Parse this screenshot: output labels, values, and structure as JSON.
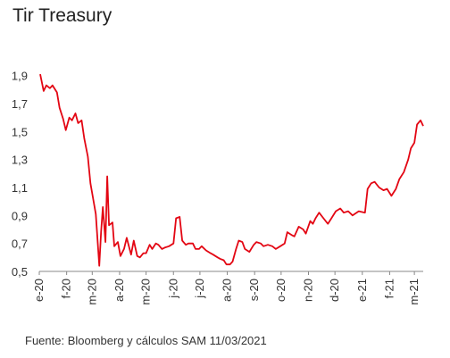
{
  "chart_data": {
    "type": "line",
    "title": "Tir Treasury",
    "xlabel": "",
    "ylabel": "",
    "ylim": [
      0.5,
      2.0
    ],
    "yticks": [
      0.5,
      0.7,
      0.9,
      1.1,
      1.3,
      1.5,
      1.7,
      1.9
    ],
    "ytick_labels": [
      "0,5",
      "0,7",
      "0,9",
      "1,1",
      "1,3",
      "1,5",
      "1,7",
      "1,9"
    ],
    "xticks": [
      {
        "label": "e-20",
        "x": "2020-01-01"
      },
      {
        "label": "f-20",
        "x": "2020-02-01"
      },
      {
        "label": "m-20",
        "x": "2020-03-01"
      },
      {
        "label": "a-20",
        "x": "2020-04-01"
      },
      {
        "label": "m-20",
        "x": "2020-05-01"
      },
      {
        "label": "j-20",
        "x": "2020-06-01"
      },
      {
        "label": "j-20",
        "x": "2020-07-01"
      },
      {
        "label": "a-20",
        "x": "2020-08-01"
      },
      {
        "label": "s-20",
        "x": "2020-09-01"
      },
      {
        "label": "o-20",
        "x": "2020-10-01"
      },
      {
        "label": "n-20",
        "x": "2020-11-01"
      },
      {
        "label": "d-20",
        "x": "2020-12-01"
      },
      {
        "label": "e-21",
        "x": "2021-01-01"
      },
      {
        "label": "f-21",
        "x": "2021-02-01"
      },
      {
        "label": "m-21",
        "x": "2021-03-01"
      }
    ],
    "xlim": [
      "2020-01-01",
      "2021-03-11"
    ],
    "grid": false,
    "legend": "none",
    "series_color": "#e30613",
    "series": [
      {
        "x": [
          "2020-01-02",
          "2020-01-06",
          "2020-01-09",
          "2020-01-13",
          "2020-01-16",
          "2020-01-21",
          "2020-01-24",
          "2020-01-28",
          "2020-01-31",
          "2020-02-04",
          "2020-02-07",
          "2020-02-11",
          "2020-02-14",
          "2020-02-18",
          "2020-02-21",
          "2020-02-25",
          "2020-02-28",
          "2020-03-02",
          "2020-03-05",
          "2020-03-09",
          "2020-03-11",
          "2020-03-13",
          "2020-03-16",
          "2020-03-18",
          "2020-03-20",
          "2020-03-24",
          "2020-03-26",
          "2020-03-30",
          "2020-04-02",
          "2020-04-06",
          "2020-04-09",
          "2020-04-14",
          "2020-04-17",
          "2020-04-21",
          "2020-04-24",
          "2020-04-28",
          "2020-05-01",
          "2020-05-05",
          "2020-05-08",
          "2020-05-12",
          "2020-05-15",
          "2020-05-19",
          "2020-05-22",
          "2020-05-27",
          "2020-06-01",
          "2020-06-04",
          "2020-06-08",
          "2020-06-11",
          "2020-06-15",
          "2020-06-18",
          "2020-06-23",
          "2020-06-26",
          "2020-06-30",
          "2020-07-03",
          "2020-07-08",
          "2020-07-13",
          "2020-07-16",
          "2020-07-21",
          "2020-07-24",
          "2020-07-28",
          "2020-07-31",
          "2020-08-04",
          "2020-08-07",
          "2020-08-11",
          "2020-08-14",
          "2020-08-18",
          "2020-08-21",
          "2020-08-26",
          "2020-08-31",
          "2020-09-03",
          "2020-09-08",
          "2020-09-11",
          "2020-09-16",
          "2020-09-21",
          "2020-09-25",
          "2020-09-30",
          "2020-10-05",
          "2020-10-08",
          "2020-10-13",
          "2020-10-16",
          "2020-10-21",
          "2020-10-26",
          "2020-10-29",
          "2020-11-03",
          "2020-11-06",
          "2020-11-09",
          "2020-11-13",
          "2020-11-18",
          "2020-11-23",
          "2020-11-27",
          "2020-12-02",
          "2020-12-07",
          "2020-12-11",
          "2020-12-16",
          "2020-12-21",
          "2020-12-28",
          "2021-01-04",
          "2021-01-07",
          "2021-01-11",
          "2021-01-15",
          "2021-01-20",
          "2021-01-25",
          "2021-01-29",
          "2021-02-03",
          "2021-02-08",
          "2021-02-12",
          "2021-02-17",
          "2021-02-22",
          "2021-02-25",
          "2021-03-01",
          "2021-03-04",
          "2021-03-08",
          "2021-03-11"
        ],
        "values": [
          1.91,
          1.79,
          1.83,
          1.81,
          1.83,
          1.78,
          1.67,
          1.59,
          1.51,
          1.6,
          1.58,
          1.63,
          1.56,
          1.58,
          1.45,
          1.32,
          1.13,
          1.02,
          0.91,
          0.54,
          0.78,
          0.96,
          0.71,
          1.18,
          0.83,
          0.85,
          0.68,
          0.71,
          0.61,
          0.66,
          0.74,
          0.62,
          0.72,
          0.61,
          0.6,
          0.63,
          0.63,
          0.69,
          0.66,
          0.7,
          0.69,
          0.66,
          0.67,
          0.68,
          0.7,
          0.88,
          0.89,
          0.72,
          0.69,
          0.7,
          0.7,
          0.66,
          0.66,
          0.68,
          0.65,
          0.63,
          0.62,
          0.6,
          0.59,
          0.58,
          0.55,
          0.55,
          0.57,
          0.66,
          0.72,
          0.71,
          0.66,
          0.64,
          0.69,
          0.71,
          0.7,
          0.68,
          0.69,
          0.68,
          0.66,
          0.68,
          0.7,
          0.78,
          0.76,
          0.75,
          0.82,
          0.8,
          0.77,
          0.86,
          0.84,
          0.88,
          0.92,
          0.88,
          0.84,
          0.88,
          0.93,
          0.95,
          0.92,
          0.93,
          0.9,
          0.93,
          0.92,
          1.09,
          1.13,
          1.14,
          1.1,
          1.08,
          1.09,
          1.04,
          1.09,
          1.16,
          1.21,
          1.3,
          1.38,
          1.42,
          1.55,
          1.58,
          1.54
        ]
      }
    ]
  },
  "source": "Fuente: Bloomberg y cálculos SAM 11/03/2021"
}
